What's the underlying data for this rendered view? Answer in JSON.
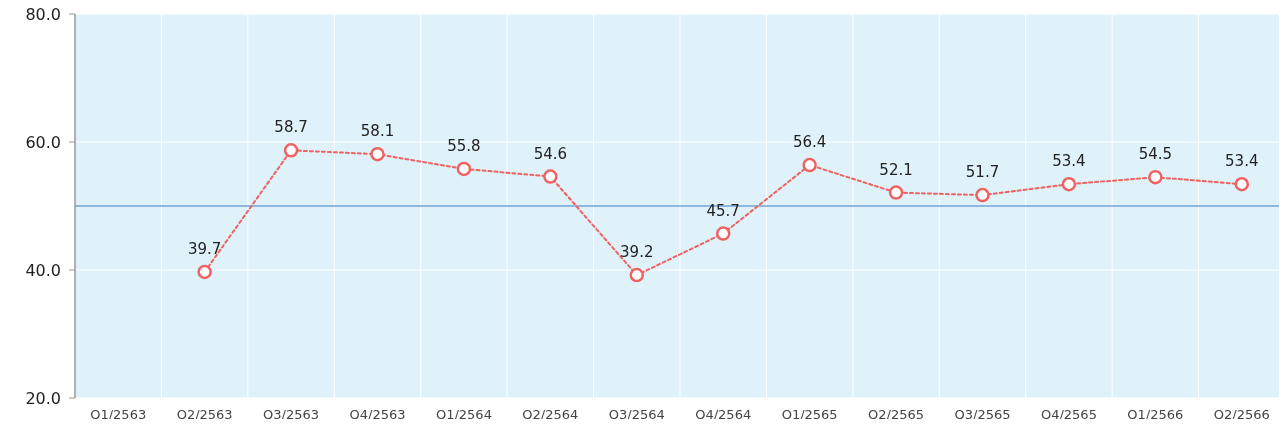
{
  "chart_data": {
    "type": "line",
    "categories": [
      "Q1/2563",
      "Q2/2563",
      "Q3/2563",
      "Q4/2563",
      "Q1/2564",
      "Q2/2564",
      "Q3/2564",
      "Q4/2564",
      "Q1/2565",
      "Q2/2565",
      "Q3/2565",
      "Q4/2565",
      "Q1/2566",
      "Q2/2566"
    ],
    "series": [
      {
        "color": "#f06262",
        "values": [
          null,
          39.7,
          58.7,
          58.1,
          55.8,
          54.6,
          39.2,
          45.7,
          56.4,
          52.1,
          51.7,
          53.4,
          54.5,
          53.4
        ]
      }
    ],
    "ylim": [
      20,
      80
    ],
    "yticks": [
      {
        "value": 20,
        "label": "20.0"
      },
      {
        "value": 40,
        "label": "40.0"
      },
      {
        "value": 60,
        "label": "60.0"
      },
      {
        "value": 80,
        "label": "80.0"
      }
    ],
    "ref_lines": [
      {
        "axis": "y",
        "value": 50,
        "color": "#8fb8e0"
      }
    ],
    "grid": true,
    "marker": "circle",
    "line_style": "dotted",
    "data_labels": true
  }
}
